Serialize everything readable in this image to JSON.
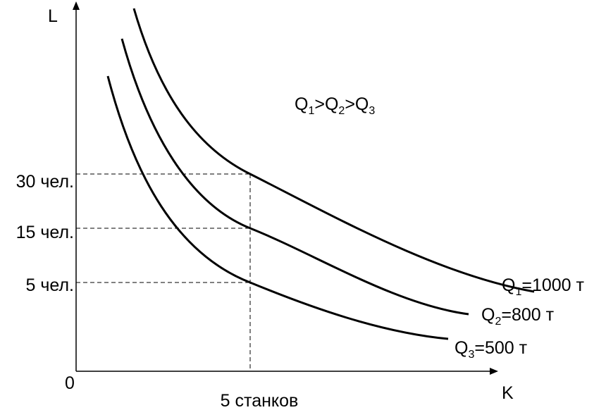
{
  "axes": {
    "y_label": "L",
    "x_label": "K",
    "origin": "0",
    "x_mark": "5 станков",
    "y_marks": [
      "30 чел.",
      "15 чел.",
      "5 чел."
    ]
  },
  "relation": {
    "parts": [
      "Q",
      "1",
      ">Q",
      "2",
      ">Q",
      "3"
    ]
  },
  "curves": [
    {
      "symbol": "Q",
      "index": "1",
      "rest": "=1000 т"
    },
    {
      "symbol": "Q",
      "index": "2",
      "rest": "=800 т"
    },
    {
      "symbol": "Q",
      "index": "3",
      "rest": "=500 т"
    }
  ]
}
